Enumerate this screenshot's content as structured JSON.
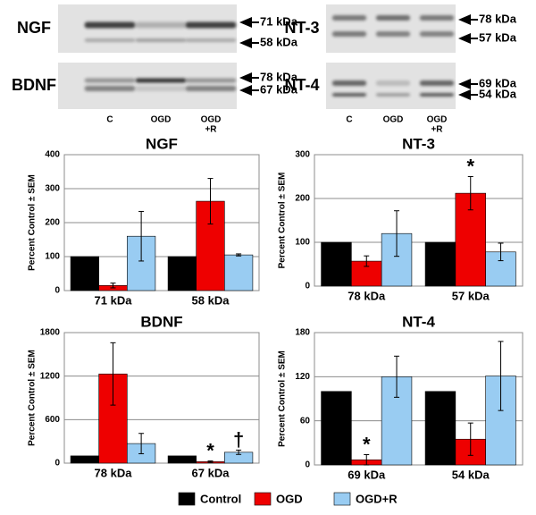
{
  "blots": [
    {
      "label": "NGF",
      "markers": [
        "71 kDa",
        "58 kDa"
      ]
    },
    {
      "label": "BDNF",
      "markers": [
        "78 kDa",
        "67 kDa"
      ]
    },
    {
      "label": "NT-3",
      "markers": [
        "78 kDa",
        "57 kDa"
      ]
    },
    {
      "label": "NT-4",
      "markers": [
        "69 kDa",
        "54 kDa"
      ]
    }
  ],
  "lanes": [
    [
      "C"
    ],
    [
      "OGD"
    ],
    [
      "OGD",
      "+R"
    ]
  ],
  "legend": [
    {
      "name": "Control",
      "color": "#000000"
    },
    {
      "name": "OGD",
      "color": "#ee0000"
    },
    {
      "name": "OGD+R",
      "color": "#99ccf2"
    }
  ],
  "chart_data": [
    {
      "type": "bar",
      "title": "NGF",
      "y_label": "Percent Control ± SEM",
      "categories": [
        "71 kDa",
        "58 kDa"
      ],
      "series": [
        {
          "values": [
            100,
            100
          ]
        },
        {
          "values": [
            15,
            263
          ],
          "errors": [
            7,
            67
          ]
        },
        {
          "values": [
            160,
            105
          ],
          "errors": [
            73,
            3
          ]
        }
      ],
      "ylim": [
        0,
        400
      ],
      "yticks": [
        0,
        100,
        200,
        300,
        400
      ],
      "grid": true
    },
    {
      "type": "bar",
      "title": "NT-3",
      "y_label": "Percent Control ± SEM",
      "categories": [
        "78 kDa",
        "57 kDa"
      ],
      "series": [
        {
          "values": [
            100,
            100
          ]
        },
        {
          "values": [
            57,
            212
          ],
          "errors": [
            12,
            38
          ]
        },
        {
          "values": [
            120,
            78
          ],
          "errors": [
            52,
            20
          ]
        }
      ],
      "ylim": [
        0,
        300
      ],
      "yticks": [
        0,
        100,
        200,
        300
      ],
      "grid": true,
      "annotations": [
        {
          "text": "*",
          "category": 1,
          "series": 1
        }
      ]
    },
    {
      "type": "bar",
      "title": "BDNF",
      "y_label": "Percent Control ± SEM",
      "categories": [
        "78 kDa",
        "67 kDa"
      ],
      "series": [
        {
          "values": [
            100,
            100
          ]
        },
        {
          "values": [
            1230,
            20
          ],
          "errors": [
            430,
            10
          ]
        },
        {
          "values": [
            270,
            150
          ],
          "errors": [
            140,
            30
          ]
        }
      ],
      "ylim": [
        0,
        1800
      ],
      "yticks": [
        0,
        600,
        1200,
        1800
      ],
      "grid": true,
      "annotations": [
        {
          "text": "*",
          "category": 1,
          "series": 1
        },
        {
          "text": "†",
          "category": 1,
          "series": 2
        }
      ]
    },
    {
      "type": "bar",
      "title": "NT-4",
      "y_label": "Percent Control ± SEM",
      "categories": [
        "69 kDa",
        "54 kDa"
      ],
      "series": [
        {
          "values": [
            100,
            100
          ]
        },
        {
          "values": [
            7,
            35
          ],
          "errors": [
            7,
            22
          ]
        },
        {
          "values": [
            120,
            121
          ],
          "errors": [
            28,
            47
          ]
        }
      ],
      "ylim": [
        0,
        180
      ],
      "yticks": [
        0,
        60,
        120,
        180
      ],
      "grid": true,
      "annotations": [
        {
          "text": "*",
          "category": 0,
          "series": 1
        }
      ]
    }
  ]
}
